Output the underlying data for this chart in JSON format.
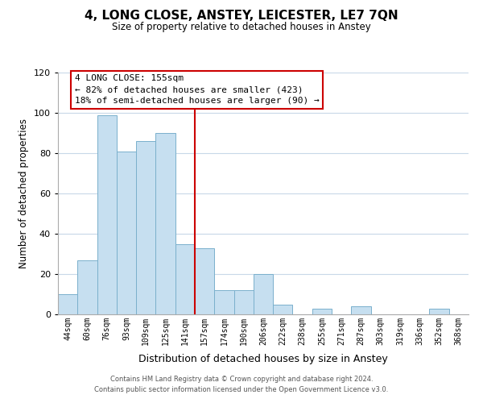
{
  "title": "4, LONG CLOSE, ANSTEY, LEICESTER, LE7 7QN",
  "subtitle": "Size of property relative to detached houses in Anstey",
  "xlabel": "Distribution of detached houses by size in Anstey",
  "ylabel": "Number of detached properties",
  "bar_labels": [
    "44sqm",
    "60sqm",
    "76sqm",
    "93sqm",
    "109sqm",
    "125sqm",
    "141sqm",
    "157sqm",
    "174sqm",
    "190sqm",
    "206sqm",
    "222sqm",
    "238sqm",
    "255sqm",
    "271sqm",
    "287sqm",
    "303sqm",
    "319sqm",
    "336sqm",
    "352sqm",
    "368sqm"
  ],
  "bar_values": [
    10,
    27,
    99,
    81,
    86,
    90,
    35,
    33,
    12,
    12,
    20,
    5,
    0,
    3,
    0,
    4,
    0,
    0,
    0,
    3,
    0
  ],
  "bar_color": "#c6dff0",
  "bar_edge_color": "#7ab0cc",
  "highlight_color": "#cc0000",
  "ylim": [
    0,
    120
  ],
  "yticks": [
    0,
    20,
    40,
    60,
    80,
    100,
    120
  ],
  "annotation_title": "4 LONG CLOSE: 155sqm",
  "annotation_line1": "← 82% of detached houses are smaller (423)",
  "annotation_line2": "18% of semi-detached houses are larger (90) →",
  "annotation_box_color": "#ffffff",
  "annotation_box_edge": "#cc0000",
  "footer_line1": "Contains HM Land Registry data © Crown copyright and database right 2024.",
  "footer_line2": "Contains public sector information licensed under the Open Government Licence v3.0.",
  "bg_color": "#ffffff",
  "grid_color": "#c8d8e8"
}
